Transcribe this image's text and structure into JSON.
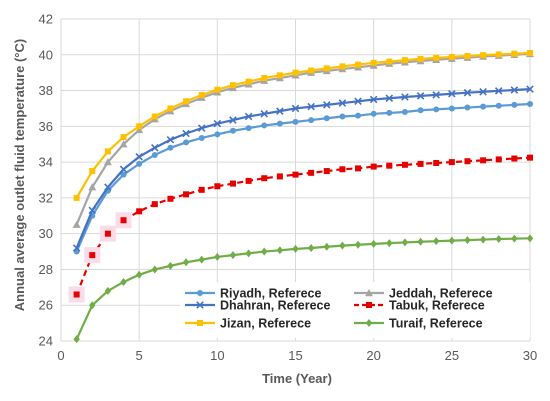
{
  "chart_data": {
    "type": "line",
    "title": "",
    "xlabel": "Time (Year)",
    "ylabel": "Annual average outlet fluid temperature (°C)",
    "xlim": [
      0,
      30
    ],
    "ylim": [
      24,
      42
    ],
    "xticks": [
      "0",
      "5",
      "10",
      "15",
      "20",
      "25",
      "30"
    ],
    "yticks": [
      "24",
      "26",
      "28",
      "30",
      "32",
      "34",
      "36",
      "38",
      "40",
      "42"
    ],
    "grid": true,
    "legend_position": "lower-right",
    "x": [
      1,
      2,
      3,
      4,
      5,
      6,
      7,
      8,
      9,
      10,
      11,
      12,
      13,
      14,
      15,
      16,
      17,
      18,
      19,
      20,
      21,
      22,
      23,
      24,
      25,
      26,
      27,
      28,
      29,
      30
    ],
    "series": [
      {
        "name": "Riyadh, Referece",
        "color": "#5b9bd5",
        "marker": "circle",
        "dash": "solid",
        "values": [
          29.0,
          31.0,
          32.4,
          33.3,
          33.9,
          34.4,
          34.8,
          35.1,
          35.35,
          35.55,
          35.75,
          35.9,
          36.05,
          36.15,
          36.25,
          36.35,
          36.45,
          36.55,
          36.6,
          36.7,
          36.75,
          36.8,
          36.9,
          36.95,
          37.0,
          37.05,
          37.1,
          37.15,
          37.2,
          37.25
        ]
      },
      {
        "name": "Jeddah, Referece",
        "color": "#a5a5a5",
        "marker": "triangle",
        "dash": "solid",
        "values": [
          30.5,
          32.6,
          34.0,
          35.0,
          35.8,
          36.4,
          36.85,
          37.25,
          37.6,
          37.9,
          38.15,
          38.35,
          38.55,
          38.7,
          38.85,
          39.0,
          39.1,
          39.2,
          39.3,
          39.4,
          39.5,
          39.58,
          39.65,
          39.72,
          39.78,
          39.84,
          39.9,
          39.95,
          40.0,
          40.05
        ]
      },
      {
        "name": "Dhahran, Referece",
        "color": "#4472c4",
        "marker": "x",
        "dash": "solid",
        "values": [
          29.2,
          31.3,
          32.6,
          33.6,
          34.3,
          34.8,
          35.25,
          35.6,
          35.9,
          36.15,
          36.35,
          36.55,
          36.7,
          36.85,
          37.0,
          37.1,
          37.2,
          37.3,
          37.4,
          37.5,
          37.57,
          37.64,
          37.7,
          37.76,
          37.82,
          37.88,
          37.93,
          37.98,
          38.03,
          38.08
        ]
      },
      {
        "name": "Tabuk, Referece",
        "color": "#e60000",
        "marker": "square",
        "dash": "dashed",
        "values": [
          26.6,
          28.8,
          30.0,
          30.75,
          31.25,
          31.65,
          31.95,
          32.2,
          32.45,
          32.65,
          32.8,
          32.95,
          33.1,
          33.2,
          33.3,
          33.4,
          33.5,
          33.6,
          33.65,
          33.75,
          33.8,
          33.85,
          33.9,
          33.95,
          34.0,
          34.05,
          34.1,
          34.15,
          34.2,
          34.25
        ]
      },
      {
        "name": "Jizan, Referece",
        "color": "#ffc000",
        "marker": "square",
        "dash": "solid",
        "values": [
          32.0,
          33.5,
          34.6,
          35.4,
          36.0,
          36.55,
          37.0,
          37.4,
          37.75,
          38.05,
          38.3,
          38.5,
          38.7,
          38.85,
          39.0,
          39.12,
          39.24,
          39.35,
          39.45,
          39.55,
          39.62,
          39.7,
          39.77,
          39.83,
          39.88,
          39.93,
          39.98,
          40.02,
          40.06,
          40.1
        ]
      },
      {
        "name": "Turaif, Referece",
        "color": "#70ad47",
        "marker": "diamond",
        "dash": "solid",
        "values": [
          24.1,
          26.0,
          26.8,
          27.3,
          27.7,
          28.0,
          28.2,
          28.4,
          28.55,
          28.7,
          28.8,
          28.9,
          29.0,
          29.07,
          29.15,
          29.2,
          29.27,
          29.33,
          29.38,
          29.43,
          29.47,
          29.51,
          29.55,
          29.58,
          29.61,
          29.64,
          29.67,
          29.7,
          29.72,
          29.74
        ]
      }
    ]
  }
}
